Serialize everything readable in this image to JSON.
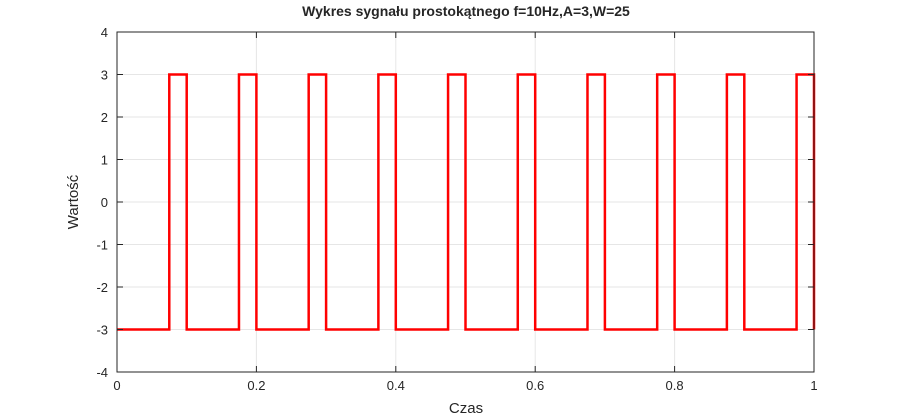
{
  "chart_data": {
    "type": "line",
    "title": "Wykres sygnału prostokątnego f=10Hz,A=3,W=25",
    "xlabel": "Czas",
    "ylabel": "Wartość",
    "xlim": [
      0,
      1
    ],
    "ylim": [
      -4,
      4
    ],
    "xticks": [
      0,
      0.2,
      0.4,
      0.6,
      0.8,
      1
    ],
    "xtick_labels": [
      "0",
      "0.2",
      "0.4",
      "0.6",
      "0.8",
      "1"
    ],
    "yticks": [
      -4,
      -3,
      -2,
      -1,
      0,
      1,
      2,
      3,
      4
    ],
    "ytick_labels": [
      "-4",
      "-3",
      "-2",
      "-1",
      "0",
      "1",
      "2",
      "3",
      "4"
    ],
    "grid": true,
    "series": [
      {
        "color": "#ff0000",
        "x": [
          0,
          0.075,
          0.075,
          0.1,
          0.1,
          0.175,
          0.175,
          0.2,
          0.2,
          0.275,
          0.275,
          0.3,
          0.3,
          0.375,
          0.375,
          0.4,
          0.4,
          0.475,
          0.475,
          0.5,
          0.5,
          0.575,
          0.575,
          0.6,
          0.6,
          0.675,
          0.675,
          0.7,
          0.7,
          0.775,
          0.775,
          0.8,
          0.8,
          0.875,
          0.875,
          0.9,
          0.9,
          0.975,
          0.975,
          1,
          1
        ],
        "y": [
          -3,
          -3,
          3,
          3,
          -3,
          -3,
          3,
          3,
          -3,
          -3,
          3,
          3,
          -3,
          -3,
          3,
          3,
          -3,
          -3,
          3,
          3,
          -3,
          -3,
          3,
          3,
          -3,
          -3,
          3,
          3,
          -3,
          -3,
          3,
          3,
          -3,
          -3,
          3,
          3,
          -3,
          -3,
          3,
          3,
          -3
        ]
      }
    ]
  }
}
